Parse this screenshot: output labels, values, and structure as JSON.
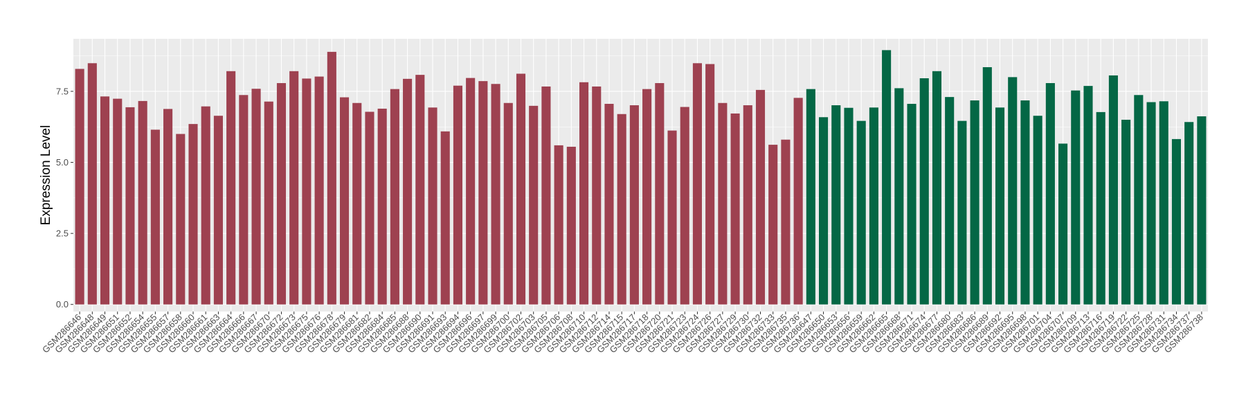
{
  "chart_data": {
    "type": "bar",
    "title": "",
    "xlabel": "",
    "ylabel": "Expression Level",
    "ylim": [
      -0.25,
      9.35
    ],
    "yticks": [
      0.0,
      2.5,
      5.0,
      7.5
    ],
    "ytick_labels": [
      "0.0",
      "2.5",
      "5.0",
      "7.5"
    ],
    "grid": true,
    "legend": "none",
    "colors": {
      "group_a": "#9E4150",
      "group_b": "#046745",
      "panel_bg": "#EBEBEB",
      "grid": "#FFFFFF"
    },
    "categories": [
      "GSM286646",
      "GSM286648",
      "GSM286649",
      "GSM286651",
      "GSM286652",
      "GSM286654",
      "GSM286655",
      "GSM286657",
      "GSM286658",
      "GSM286660",
      "GSM286661",
      "GSM286663",
      "GSM286664",
      "GSM286666",
      "GSM286667",
      "GSM286670",
      "GSM286672",
      "GSM286673",
      "GSM286675",
      "GSM286676",
      "GSM286678",
      "GSM286679",
      "GSM286681",
      "GSM286682",
      "GSM286684",
      "GSM286685",
      "GSM286688",
      "GSM286690",
      "GSM286691",
      "GSM286693",
      "GSM286694",
      "GSM286696",
      "GSM286697",
      "GSM286699",
      "GSM286700",
      "GSM286702",
      "GSM286703",
      "GSM286705",
      "GSM286706",
      "GSM286708",
      "GSM286710",
      "GSM286712",
      "GSM286714",
      "GSM286715",
      "GSM286717",
      "GSM286718",
      "GSM286720",
      "GSM286721",
      "GSM286723",
      "GSM286724",
      "GSM286726",
      "GSM286727",
      "GSM286729",
      "GSM286730",
      "GSM286732",
      "GSM286733",
      "GSM286735",
      "GSM286736",
      "GSM286647",
      "GSM286650",
      "GSM286653",
      "GSM286656",
      "GSM286659",
      "GSM286662",
      "GSM286665",
      "GSM286668",
      "GSM286671",
      "GSM286674",
      "GSM286677",
      "GSM286680",
      "GSM286683",
      "GSM286686",
      "GSM286689",
      "GSM286692",
      "GSM286695",
      "GSM286698",
      "GSM286701",
      "GSM286704",
      "GSM286707",
      "GSM286709",
      "GSM286713",
      "GSM286716",
      "GSM286719",
      "GSM286722",
      "GSM286725",
      "GSM286728",
      "GSM286731",
      "GSM286734",
      "GSM286737",
      "GSM286738"
    ],
    "values": [
      8.29,
      8.49,
      7.32,
      7.24,
      6.94,
      7.16,
      6.15,
      6.88,
      6.0,
      6.35,
      6.97,
      6.64,
      8.21,
      7.37,
      7.59,
      7.14,
      7.79,
      8.21,
      7.95,
      8.02,
      8.89,
      7.29,
      7.09,
      6.78,
      6.89,
      7.58,
      7.94,
      8.08,
      6.93,
      6.09,
      7.7,
      7.97,
      7.86,
      7.76,
      7.09,
      8.12,
      6.99,
      7.67,
      5.6,
      5.55,
      7.82,
      7.67,
      7.06,
      6.7,
      7.01,
      7.58,
      7.79,
      6.12,
      6.95,
      8.49,
      8.46,
      7.09,
      6.72,
      7.01,
      7.55,
      5.62,
      5.8,
      7.27,
      7.58,
      6.59,
      7.01,
      6.92,
      6.46,
      6.93,
      8.95,
      7.61,
      7.06,
      7.96,
      8.21,
      7.3,
      6.46,
      7.18,
      8.35,
      6.93,
      8.0,
      7.18,
      6.64,
      7.79,
      5.66,
      7.53,
      7.69,
      6.77,
      8.06,
      6.5,
      7.37,
      7.12,
      7.15,
      5.82,
      6.42,
      6.62
    ],
    "groups": [
      "a",
      "a",
      "a",
      "a",
      "a",
      "a",
      "a",
      "a",
      "a",
      "a",
      "a",
      "a",
      "a",
      "a",
      "a",
      "a",
      "a",
      "a",
      "a",
      "a",
      "a",
      "a",
      "a",
      "a",
      "a",
      "a",
      "a",
      "a",
      "a",
      "a",
      "a",
      "a",
      "a",
      "a",
      "a",
      "a",
      "a",
      "a",
      "a",
      "a",
      "a",
      "a",
      "a",
      "a",
      "a",
      "a",
      "a",
      "a",
      "a",
      "a",
      "a",
      "a",
      "a",
      "a",
      "a",
      "a",
      "a",
      "a",
      "b",
      "b",
      "b",
      "b",
      "b",
      "b",
      "b",
      "b",
      "b",
      "b",
      "b",
      "b",
      "b",
      "b",
      "b",
      "b",
      "b",
      "b",
      "b",
      "b",
      "b",
      "b",
      "b",
      "b",
      "b",
      "b",
      "b",
      "b",
      "b",
      "b",
      "b",
      "b"
    ]
  }
}
